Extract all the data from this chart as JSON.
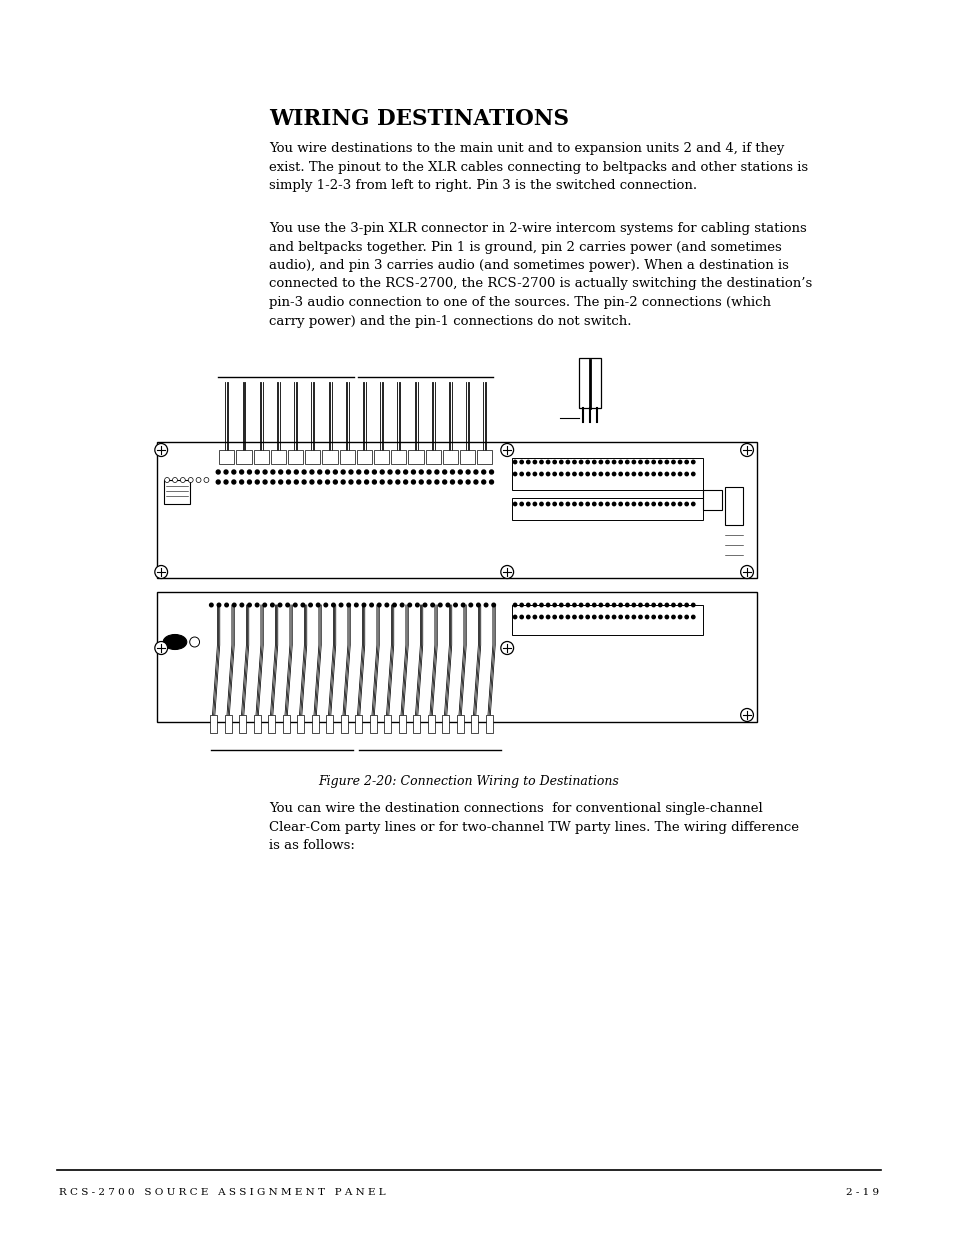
{
  "title": "WIRING DESTINATIONS",
  "para1": "You wire destinations to the main unit and to expansion units 2 and 4, if they\nexist. The pinout to the XLR cables connecting to beltpacks and other stations is\nsimply 1-2-3 from left to right. Pin 3 is the switched connection.",
  "para2": "You use the 3-pin XLR connector in 2-wire intercom systems for cabling stations\nand beltpacks together. Pin 1 is ground, pin 2 carries power (and sometimes\naudio), and pin 3 carries audio (and sometimes power). When a destination is\nconnected to the RCS-2700, the RCS-2700 is actually switching the destination’s\npin-3 audio connection to one of the sources. The pin-2 connections (which\ncarry power) and the pin-1 connections do not switch.",
  "fig_caption": "Figure 2-20: Connection Wiring to Destinations",
  "para3": "You can wire the destination connections  for conventional single-channel\nClear-Com party lines or for two-channel TW party lines. The wiring difference\nis as follows:",
  "footer_left": "R C S - 2 7 0 0   S O U R C E   A S S I G N M E N T   P A N E L",
  "footer_right": "2 - 1 9",
  "bg_color": "#ffffff",
  "text_color": "#000000",
  "title_color": "#000000"
}
